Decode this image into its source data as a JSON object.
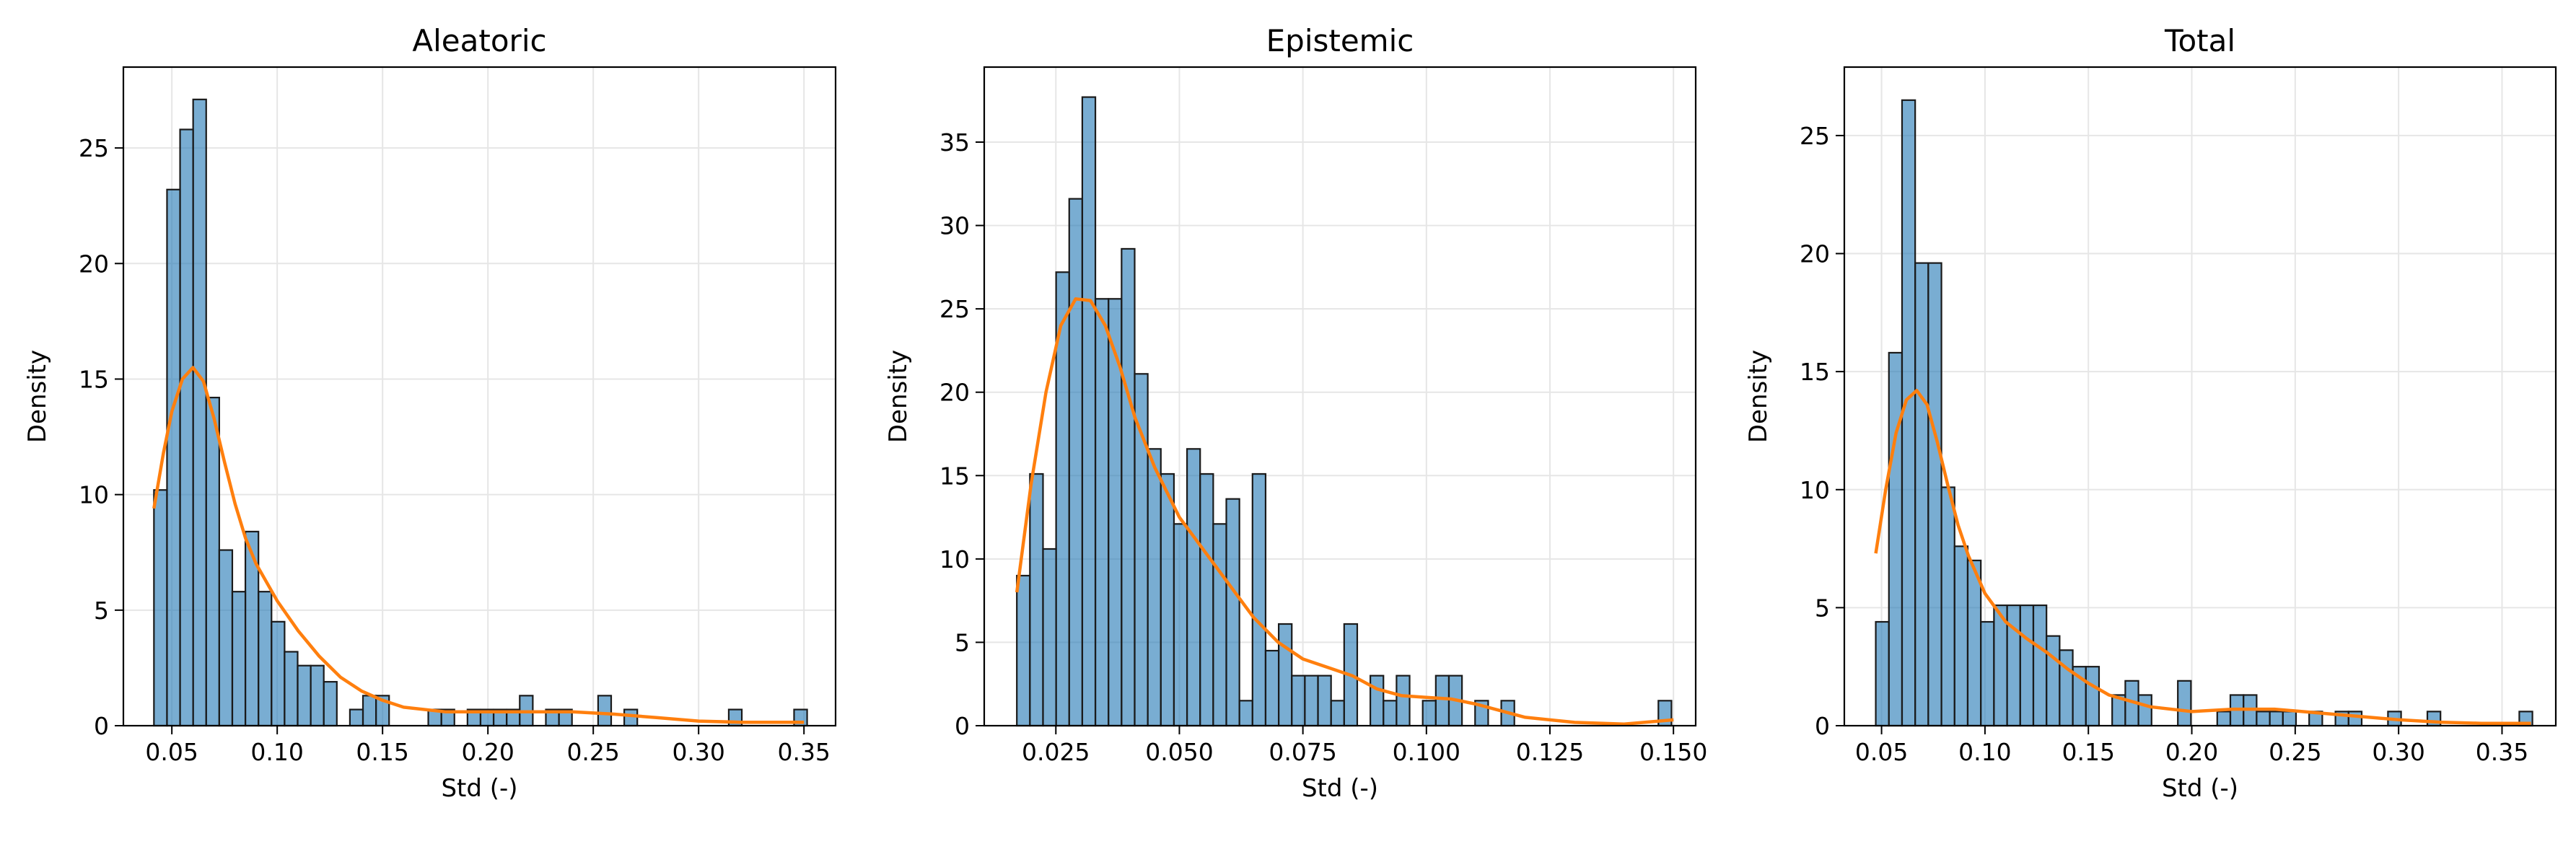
{
  "chart_data": [
    {
      "type": "bar",
      "title": "Aleatoric",
      "xlabel": "Std (-)",
      "ylabel": "Density",
      "xlim": [
        0.027,
        0.365
      ],
      "ylim": [
        0,
        28.5
      ],
      "grid": true,
      "xticks": [
        0.05,
        0.1,
        0.15,
        0.2,
        0.25,
        0.3,
        0.35
      ],
      "xtick_labels": [
        "0.05",
        "0.10",
        "0.15",
        "0.20",
        "0.25",
        "0.30",
        "0.35"
      ],
      "yticks": [
        0,
        5,
        10,
        15,
        20,
        25
      ],
      "ytick_labels": [
        "0",
        "5",
        "10",
        "15",
        "20",
        "25"
      ],
      "histogram": {
        "bin_start": 0.0415,
        "bin_width": 0.0062,
        "color": "#1f77b4",
        "densities": [
          10.2,
          23.2,
          25.8,
          27.1,
          14.2,
          7.6,
          5.8,
          8.4,
          5.8,
          4.5,
          3.2,
          2.6,
          2.6,
          1.9,
          0,
          0.7,
          1.3,
          1.3,
          0,
          0,
          0,
          0.7,
          0.7,
          0,
          0.7,
          0.7,
          0.7,
          0.7,
          1.3,
          0,
          0.7,
          0.7,
          0,
          0,
          1.3,
          0,
          0.7,
          0,
          0,
          0,
          0,
          0,
          0,
          0,
          0.7,
          0,
          0,
          0,
          0,
          0.7
        ]
      },
      "kde": {
        "name": "",
        "color": "#ff7f0e",
        "x": [
          0.0415,
          0.046,
          0.05,
          0.055,
          0.06,
          0.065,
          0.07,
          0.075,
          0.08,
          0.085,
          0.09,
          0.1,
          0.11,
          0.12,
          0.13,
          0.14,
          0.15,
          0.16,
          0.18,
          0.2,
          0.22,
          0.24,
          0.26,
          0.28,
          0.3,
          0.32,
          0.35
        ],
        "y": [
          9.4,
          11.8,
          13.6,
          15.0,
          15.5,
          14.9,
          13.3,
          11.4,
          9.6,
          8.1,
          7.0,
          5.4,
          4.1,
          3.0,
          2.1,
          1.5,
          1.1,
          0.8,
          0.6,
          0.6,
          0.6,
          0.6,
          0.5,
          0.35,
          0.2,
          0.15,
          0.15
        ]
      }
    },
    {
      "type": "bar",
      "title": "Epistemic",
      "xlabel": "Std (-)",
      "ylabel": "Density",
      "xlim": [
        0.0105,
        0.1545
      ],
      "ylim": [
        0,
        39.5
      ],
      "grid": true,
      "xticks": [
        0.025,
        0.05,
        0.075,
        0.1,
        0.125,
        0.15
      ],
      "xtick_labels": [
        "0.025",
        "0.050",
        "0.075",
        "0.100",
        "0.125",
        "0.150"
      ],
      "yticks": [
        0,
        5,
        10,
        15,
        20,
        25,
        30,
        35
      ],
      "ytick_labels": [
        "0",
        "5",
        "10",
        "15",
        "20",
        "25",
        "30",
        "35"
      ],
      "histogram": {
        "bin_start": 0.0171,
        "bin_width": 0.00265,
        "color": "#1f77b4",
        "densities": [
          9.0,
          15.1,
          10.6,
          27.2,
          31.6,
          37.7,
          25.6,
          25.6,
          28.6,
          21.1,
          16.6,
          15.1,
          12.1,
          16.6,
          15.1,
          12.1,
          13.6,
          1.5,
          15.1,
          4.5,
          6.1,
          3.0,
          3.0,
          3.0,
          1.5,
          6.1,
          0,
          3.0,
          1.5,
          3.0,
          0,
          1.5,
          3.0,
          3.0,
          0,
          1.5,
          0,
          1.5,
          0,
          0,
          0,
          0,
          0,
          0,
          0,
          0,
          0,
          0,
          0,
          1.5
        ]
      },
      "kde": {
        "name": "",
        "color": "#ff7f0e",
        "x": [
          0.0171,
          0.02,
          0.023,
          0.026,
          0.029,
          0.032,
          0.035,
          0.038,
          0.041,
          0.045,
          0.05,
          0.055,
          0.06,
          0.065,
          0.07,
          0.075,
          0.08,
          0.085,
          0.09,
          0.095,
          0.1,
          0.105,
          0.11,
          0.115,
          0.12,
          0.13,
          0.14,
          0.15
        ],
        "y": [
          8.0,
          14.5,
          20.0,
          24.0,
          25.6,
          25.5,
          24.0,
          21.5,
          18.5,
          15.5,
          12.5,
          10.5,
          8.5,
          6.5,
          5.0,
          4.0,
          3.5,
          3.0,
          2.2,
          1.8,
          1.7,
          1.6,
          1.3,
          0.9,
          0.5,
          0.2,
          0.1,
          0.35
        ]
      }
    },
    {
      "type": "bar",
      "title": "Total",
      "xlabel": "Std (-)",
      "ylabel": "Density",
      "xlim": [
        0.032,
        0.376
      ],
      "ylim": [
        0,
        27.9
      ],
      "grid": true,
      "xticks": [
        0.05,
        0.1,
        0.15,
        0.2,
        0.25,
        0.3,
        0.35
      ],
      "xtick_labels": [
        "0.05",
        "0.10",
        "0.15",
        "0.20",
        "0.25",
        "0.30",
        "0.35"
      ],
      "yticks": [
        0,
        5,
        10,
        15,
        20,
        25
      ],
      "ytick_labels": [
        "0",
        "5",
        "10",
        "15",
        "20",
        "25"
      ],
      "histogram": {
        "bin_start": 0.0472,
        "bin_width": 0.00635,
        "color": "#1f77b4",
        "densities": [
          4.4,
          15.8,
          26.5,
          19.6,
          19.6,
          10.1,
          7.6,
          7.0,
          4.4,
          5.1,
          5.1,
          5.1,
          5.1,
          3.8,
          3.2,
          2.5,
          2.5,
          0,
          1.3,
          1.9,
          1.3,
          0,
          0,
          1.9,
          0,
          0,
          0.6,
          1.3,
          1.3,
          0.6,
          0.6,
          0.6,
          0,
          0.6,
          0,
          0.6,
          0.6,
          0,
          0,
          0.6,
          0,
          0,
          0.6,
          0,
          0,
          0,
          0,
          0,
          0,
          0.6
        ]
      },
      "kde": {
        "name": "",
        "color": "#ff7f0e",
        "x": [
          0.0472,
          0.052,
          0.057,
          0.062,
          0.067,
          0.072,
          0.077,
          0.082,
          0.087,
          0.092,
          0.1,
          0.11,
          0.12,
          0.13,
          0.14,
          0.15,
          0.16,
          0.18,
          0.2,
          0.22,
          0.24,
          0.26,
          0.28,
          0.3,
          0.32,
          0.34,
          0.364
        ],
        "y": [
          7.3,
          10.0,
          12.4,
          13.8,
          14.2,
          13.6,
          12.0,
          10.2,
          8.5,
          7.2,
          5.6,
          4.4,
          3.7,
          3.1,
          2.4,
          1.8,
          1.3,
          0.8,
          0.6,
          0.7,
          0.7,
          0.55,
          0.4,
          0.25,
          0.15,
          0.1,
          0.1
        ]
      }
    }
  ]
}
